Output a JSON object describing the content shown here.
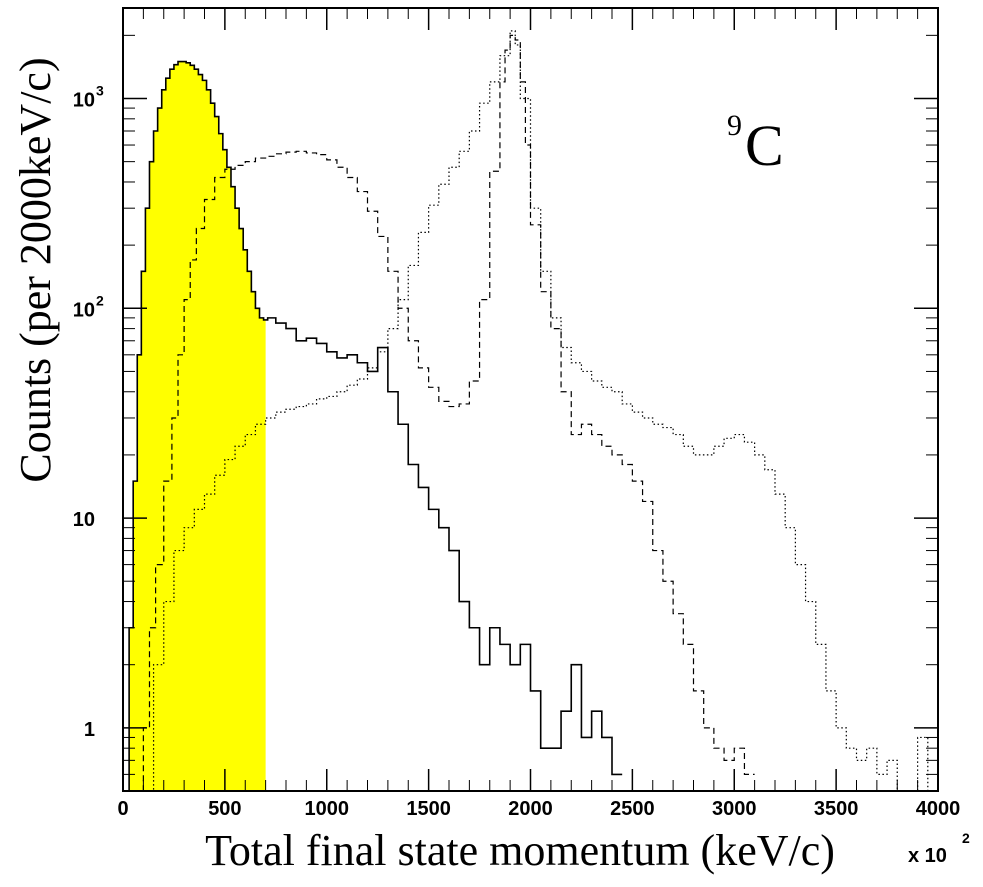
{
  "chart_data": {
    "type": "histogram",
    "title": "",
    "xlabel": "Total final state momentum (keV/c)",
    "ylabel": "Counts (per 2000keV/c)",
    "x_multiplier_label": "x 10",
    "x_multiplier_exponent": "2",
    "annotation": {
      "superscript": "9",
      "text": "C"
    },
    "x_range": [
      0,
      4000
    ],
    "y_range": [
      0.5,
      2700
    ],
    "y_scale": "log",
    "grid": false,
    "x_ticks": [
      {
        "value": 0,
        "label": "0"
      },
      {
        "value": 500,
        "label": "500"
      },
      {
        "value": 1000,
        "label": "1000"
      },
      {
        "value": 1500,
        "label": "1500"
      },
      {
        "value": 2000,
        "label": "2000"
      },
      {
        "value": 2500,
        "label": "2500"
      },
      {
        "value": 3000,
        "label": "3000"
      },
      {
        "value": 3500,
        "label": "3500"
      },
      {
        "value": 4000,
        "label": "4000"
      }
    ],
    "y_ticks": [
      {
        "value": 1,
        "label": "1",
        "sup": ""
      },
      {
        "value": 10,
        "label": "10",
        "sup": ""
      },
      {
        "value": 100,
        "label": "10",
        "sup": "2"
      },
      {
        "value": 1000,
        "label": "10",
        "sup": "3"
      }
    ],
    "highlight": {
      "x_range": [
        0,
        700
      ],
      "color": "#ffff00"
    },
    "series": [
      {
        "style": "solid",
        "points": [
          [
            0,
            0.5
          ],
          [
            30,
            3
          ],
          [
            50,
            15
          ],
          [
            70,
            60
          ],
          [
            90,
            150
          ],
          [
            110,
            300
          ],
          [
            130,
            500
          ],
          [
            150,
            700
          ],
          [
            170,
            900
          ],
          [
            190,
            1100
          ],
          [
            210,
            1250
          ],
          [
            230,
            1380
          ],
          [
            250,
            1450
          ],
          [
            270,
            1500
          ],
          [
            290,
            1500
          ],
          [
            310,
            1480
          ],
          [
            330,
            1440
          ],
          [
            350,
            1380
          ],
          [
            370,
            1300
          ],
          [
            390,
            1220
          ],
          [
            410,
            1100
          ],
          [
            430,
            950
          ],
          [
            450,
            820
          ],
          [
            470,
            680
          ],
          [
            490,
            570
          ],
          [
            510,
            470
          ],
          [
            530,
            380
          ],
          [
            550,
            300
          ],
          [
            570,
            240
          ],
          [
            590,
            190
          ],
          [
            610,
            150
          ],
          [
            630,
            120
          ],
          [
            650,
            100
          ],
          [
            670,
            90
          ],
          [
            690,
            88
          ],
          [
            710,
            90
          ],
          [
            750,
            85
          ],
          [
            800,
            80
          ],
          [
            850,
            70
          ],
          [
            900,
            72
          ],
          [
            950,
            68
          ],
          [
            1000,
            62
          ],
          [
            1050,
            58
          ],
          [
            1100,
            60
          ],
          [
            1150,
            55
          ],
          [
            1200,
            50
          ],
          [
            1250,
            65
          ],
          [
            1300,
            40
          ],
          [
            1350,
            28
          ],
          [
            1400,
            18
          ],
          [
            1450,
            14
          ],
          [
            1500,
            11
          ],
          [
            1550,
            9
          ],
          [
            1600,
            7
          ],
          [
            1650,
            4
          ],
          [
            1700,
            3
          ],
          [
            1750,
            2
          ],
          [
            1800,
            3
          ],
          [
            1850,
            2.5
          ],
          [
            1900,
            2
          ],
          [
            1950,
            2.5
          ],
          [
            2000,
            1.5
          ],
          [
            2050,
            0.8
          ],
          [
            2100,
            0.8
          ],
          [
            2150,
            1.2
          ],
          [
            2200,
            2
          ],
          [
            2250,
            0.9
          ],
          [
            2300,
            1.2
          ],
          [
            2350,
            0.9
          ],
          [
            2400,
            0.6
          ]
        ]
      },
      {
        "style": "dashed",
        "points": [
          [
            50,
            0.5
          ],
          [
            100,
            1
          ],
          [
            130,
            3
          ],
          [
            160,
            6
          ],
          [
            200,
            15
          ],
          [
            240,
            30
          ],
          [
            270,
            60
          ],
          [
            300,
            110
          ],
          [
            330,
            170
          ],
          [
            360,
            240
          ],
          [
            400,
            330
          ],
          [
            450,
            420
          ],
          [
            500,
            460
          ],
          [
            550,
            480
          ],
          [
            600,
            500
          ],
          [
            650,
            520
          ],
          [
            700,
            530
          ],
          [
            750,
            545
          ],
          [
            800,
            555
          ],
          [
            850,
            560
          ],
          [
            900,
            550
          ],
          [
            950,
            540
          ],
          [
            1000,
            510
          ],
          [
            1050,
            470
          ],
          [
            1100,
            420
          ],
          [
            1150,
            360
          ],
          [
            1200,
            290
          ],
          [
            1250,
            220
          ],
          [
            1300,
            150
          ],
          [
            1350,
            100
          ],
          [
            1400,
            70
          ],
          [
            1450,
            52
          ],
          [
            1500,
            42
          ],
          [
            1550,
            36
          ],
          [
            1600,
            34
          ],
          [
            1650,
            35
          ],
          [
            1700,
            45
          ],
          [
            1750,
            110
          ],
          [
            1800,
            450
          ],
          [
            1850,
            1200
          ],
          [
            1875,
            1700
          ],
          [
            1900,
            2000
          ],
          [
            1925,
            1900
          ],
          [
            1950,
            1200
          ],
          [
            1975,
            600
          ],
          [
            2000,
            250
          ],
          [
            2050,
            120
          ],
          [
            2100,
            80
          ],
          [
            2150,
            40
          ],
          [
            2200,
            25
          ],
          [
            2250,
            28
          ],
          [
            2300,
            25
          ],
          [
            2350,
            22
          ],
          [
            2400,
            20
          ],
          [
            2450,
            18
          ],
          [
            2500,
            15
          ],
          [
            2550,
            12
          ],
          [
            2600,
            7
          ],
          [
            2650,
            5
          ],
          [
            2700,
            3.5
          ],
          [
            2750,
            2.5
          ],
          [
            2800,
            1.5
          ],
          [
            2850,
            1
          ],
          [
            2900,
            0.8
          ],
          [
            2950,
            0.7
          ],
          [
            3000,
            0.8
          ],
          [
            3050,
            0.6
          ]
        ]
      },
      {
        "style": "dotted",
        "points": [
          [
            0,
            0.5
          ],
          [
            150,
            2
          ],
          [
            200,
            4
          ],
          [
            250,
            7
          ],
          [
            300,
            9
          ],
          [
            350,
            11
          ],
          [
            400,
            13
          ],
          [
            450,
            16
          ],
          [
            500,
            19
          ],
          [
            550,
            22
          ],
          [
            600,
            25
          ],
          [
            650,
            28
          ],
          [
            700,
            30
          ],
          [
            750,
            32
          ],
          [
            800,
            33
          ],
          [
            850,
            34
          ],
          [
            900,
            35
          ],
          [
            950,
            37
          ],
          [
            1000,
            38
          ],
          [
            1050,
            40
          ],
          [
            1100,
            43
          ],
          [
            1150,
            46
          ],
          [
            1200,
            52
          ],
          [
            1250,
            62
          ],
          [
            1300,
            80
          ],
          [
            1350,
            110
          ],
          [
            1400,
            160
          ],
          [
            1450,
            230
          ],
          [
            1500,
            310
          ],
          [
            1550,
            390
          ],
          [
            1600,
            470
          ],
          [
            1650,
            560
          ],
          [
            1700,
            700
          ],
          [
            1750,
            950
          ],
          [
            1800,
            1200
          ],
          [
            1850,
            1600
          ],
          [
            1900,
            2100
          ],
          [
            1925,
            1800
          ],
          [
            1950,
            1000
          ],
          [
            2000,
            300
          ],
          [
            2050,
            150
          ],
          [
            2100,
            90
          ],
          [
            2150,
            65
          ],
          [
            2200,
            55
          ],
          [
            2250,
            50
          ],
          [
            2300,
            45
          ],
          [
            2350,
            42
          ],
          [
            2400,
            40
          ],
          [
            2450,
            35
          ],
          [
            2500,
            32
          ],
          [
            2550,
            30
          ],
          [
            2600,
            28
          ],
          [
            2650,
            27
          ],
          [
            2700,
            25
          ],
          [
            2750,
            22
          ],
          [
            2800,
            20
          ],
          [
            2850,
            20
          ],
          [
            2900,
            22
          ],
          [
            2950,
            24
          ],
          [
            3000,
            25
          ],
          [
            3050,
            23
          ],
          [
            3100,
            20
          ],
          [
            3150,
            17
          ],
          [
            3200,
            13
          ],
          [
            3250,
            9
          ],
          [
            3300,
            6
          ],
          [
            3350,
            4
          ],
          [
            3400,
            2.5
          ],
          [
            3450,
            1.5
          ],
          [
            3500,
            1
          ],
          [
            3550,
            0.8
          ],
          [
            3600,
            0.7
          ],
          [
            3650,
            0.8
          ],
          [
            3700,
            0.6
          ],
          [
            3750,
            0.7
          ],
          [
            3800,
            0.5
          ],
          [
            3900,
            0.9
          ],
          [
            3950,
            0.5
          ]
        ]
      }
    ]
  }
}
